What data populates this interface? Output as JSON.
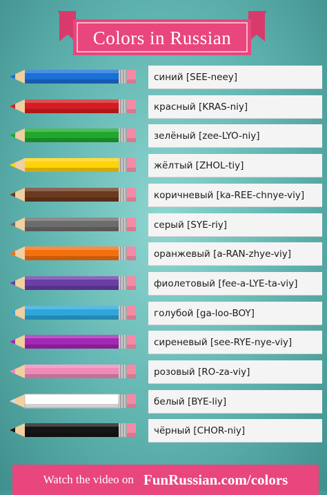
{
  "banner": {
    "title": "Colors in Russian"
  },
  "colors": [
    {
      "label": "синий [SEE-neey]",
      "pencil_color": "#1a70d6"
    },
    {
      "label": "красный [KRAS-niy]",
      "pencil_color": "#d41d22"
    },
    {
      "label": "зелёный [zee-LYO-niy]",
      "pencil_color": "#1fa82c"
    },
    {
      "label": "жёлтый [ZHOL-tiy]",
      "pencil_color": "#ffd20a"
    },
    {
      "label": "коричневый [ka-REE-chnye-viy]",
      "pencil_color": "#6b3a1f"
    },
    {
      "label": "серый [SYE-riy]",
      "pencil_color": "#6c6c6c"
    },
    {
      "label": "оранжевый [a-RAN-zhye-viy]",
      "pencil_color": "#f4700f"
    },
    {
      "label": "фиолетовый [fee-a-LYE-ta-viy]",
      "pencil_color": "#6b3ea6"
    },
    {
      "label": "голубой [ga-loo-BOY]",
      "pencil_color": "#2da7db"
    },
    {
      "label": "сиреневый [see-RYE-nye-viy]",
      "pencil_color": "#a527b5"
    },
    {
      "label": "розовый [RO-za-viy]",
      "pencil_color": "#f08ab9"
    },
    {
      "label": "белый [BYE-liy]",
      "pencil_color": "#ffffff"
    },
    {
      "label": "чёрный [CHOR-niy]",
      "pencil_color": "#151515"
    }
  ],
  "footer": {
    "watch_text": "Watch the video on",
    "site_text": "FunRussian.com/colors"
  },
  "palette": {
    "banner_pink": "#e8467c",
    "background_teal": "#5fb3af"
  }
}
